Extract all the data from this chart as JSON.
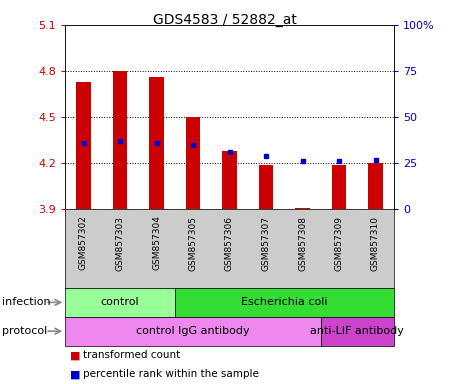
{
  "title": "GDS4583 / 52882_at",
  "samples": [
    "GSM857302",
    "GSM857303",
    "GSM857304",
    "GSM857305",
    "GSM857306",
    "GSM857307",
    "GSM857308",
    "GSM857309",
    "GSM857310"
  ],
  "red_values": [
    4.73,
    4.8,
    4.76,
    4.5,
    4.28,
    4.19,
    3.91,
    4.19,
    4.2
  ],
  "blue_values": [
    36,
    37,
    36,
    35,
    31,
    29,
    26,
    26,
    27
  ],
  "ylim_left": [
    3.9,
    5.1
  ],
  "ylim_right": [
    0,
    100
  ],
  "yticks_left": [
    3.9,
    4.2,
    4.5,
    4.8,
    5.1
  ],
  "yticks_right": [
    0,
    25,
    50,
    75,
    100
  ],
  "ytick_labels_left": [
    "3.9",
    "4.2",
    "4.5",
    "4.8",
    "5.1"
  ],
  "ytick_labels_right": [
    "0",
    "25",
    "50",
    "75",
    "100%"
  ],
  "bar_color": "#cc0000",
  "dot_color": "#0000cc",
  "bar_bottom": 3.9,
  "infection_groups": [
    {
      "label": "control",
      "start": 0,
      "end": 3,
      "color": "#99ff99"
    },
    {
      "label": "Escherichia coli",
      "start": 3,
      "end": 9,
      "color": "#33dd33"
    }
  ],
  "protocol_groups": [
    {
      "label": "control IgG antibody",
      "start": 0,
      "end": 7,
      "color": "#ee88ee"
    },
    {
      "label": "anti-LIF antibody",
      "start": 7,
      "end": 9,
      "color": "#cc44cc"
    }
  ],
  "legend_items": [
    {
      "label": "transformed count",
      "color": "#cc0000"
    },
    {
      "label": "percentile rank within the sample",
      "color": "#0000cc"
    }
  ],
  "label_bg_color": "#cccccc",
  "figsize": [
    4.5,
    3.84
  ],
  "dpi": 100
}
